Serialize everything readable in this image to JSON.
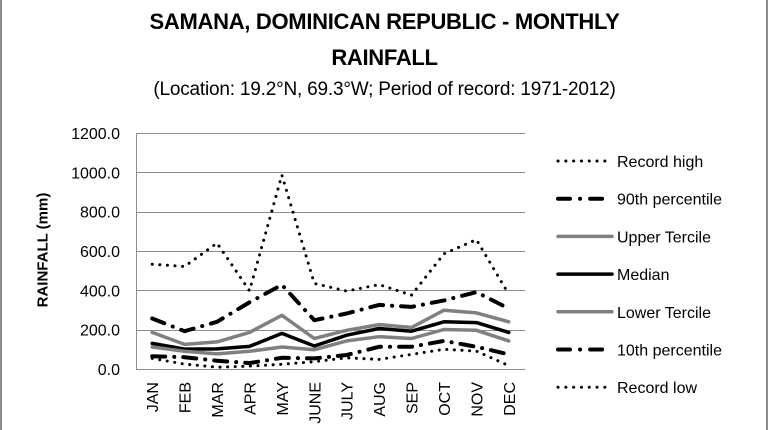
{
  "chart_data": {
    "type": "line",
    "title": "SAMANA, DOMINICAN REPUBLIC - MONTHLY RAINFALL",
    "title_lines": [
      "SAMANA, DOMINICAN REPUBLIC - MONTHLY",
      "RAINFALL"
    ],
    "subtitle": "(Location: 19.2°N, 69.3°W; Period of record: 1971-2012)",
    "xlabel": "",
    "ylabel": "RAINFALL (mm)",
    "ylim": [
      0,
      1200
    ],
    "yticks": [
      0,
      200,
      400,
      600,
      800,
      1000,
      1200
    ],
    "ytick_labels": [
      "0.0",
      "200.0",
      "400.0",
      "600.0",
      "800.0",
      "1000.0",
      "1200.0"
    ],
    "grid": true,
    "legend_position": "right",
    "categories": [
      "JAN",
      "FEB",
      "MAR",
      "APR",
      "MAY",
      "JUNE",
      "JULY",
      "AUG",
      "SEP",
      "OCT",
      "NOV",
      "DEC"
    ],
    "series": [
      {
        "name": "Record high",
        "style": "dotted",
        "color": "#000000",
        "values": [
          533,
          521,
          640,
          398,
          986,
          435,
          396,
          429,
          376,
          586,
          658,
          380
        ]
      },
      {
        "name": "90th percentile",
        "style": "dash-dot",
        "color": "#000000",
        "values": [
          257,
          192,
          240,
          339,
          428,
          248,
          282,
          326,
          316,
          349,
          391,
          307
        ]
      },
      {
        "name": "Upper Tercile",
        "style": "solid",
        "color": "#808080",
        "values": [
          186,
          125,
          138,
          186,
          273,
          155,
          197,
          226,
          211,
          299,
          285,
          240
        ]
      },
      {
        "name": "Median",
        "style": "solid",
        "color": "#000000",
        "values": [
          130,
          101,
          102,
          115,
          181,
          117,
          172,
          206,
          192,
          240,
          236,
          186
        ]
      },
      {
        "name": "Lower Tercile",
        "style": "solid",
        "color": "#808080",
        "values": [
          112,
          90,
          77,
          90,
          112,
          98,
          143,
          164,
          155,
          201,
          197,
          143
        ]
      },
      {
        "name": "10th percentile",
        "style": "dash-dot",
        "color": "#000000",
        "values": [
          65,
          60,
          42,
          30,
          57,
          54,
          71,
          113,
          113,
          143,
          113,
          74
        ]
      },
      {
        "name": "Record low",
        "style": "dotted",
        "color": "#000000",
        "values": [
          54,
          25,
          9,
          15,
          24,
          37,
          57,
          49,
          74,
          100,
          91,
          17
        ]
      }
    ]
  }
}
